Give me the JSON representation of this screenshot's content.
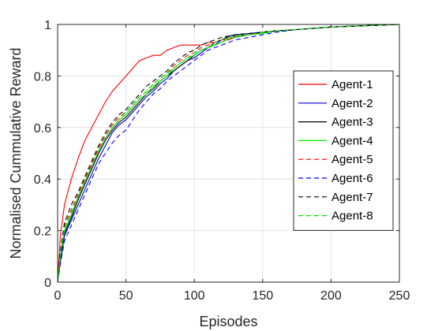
{
  "chart_data": {
    "type": "line",
    "title": "",
    "xlabel": "Episodes",
    "ylabel": "Normalised Cummulative Reward",
    "xlim": [
      0,
      250
    ],
    "ylim": [
      0,
      1
    ],
    "xticks": [
      0,
      50,
      100,
      150,
      200,
      250
    ],
    "xtick_labels": [
      "0",
      "50",
      "100",
      "150",
      "200",
      "250"
    ],
    "yticks": [
      0,
      0.2,
      0.4,
      0.6,
      0.8,
      1
    ],
    "ytick_labels": [
      "0",
      "0.2",
      "0.4",
      "0.6",
      "0.8",
      "1"
    ],
    "grid": true,
    "legend_position": "right",
    "x": [
      0,
      2,
      5,
      10,
      15,
      20,
      25,
      30,
      35,
      40,
      45,
      50,
      55,
      60,
      65,
      70,
      75,
      80,
      85,
      90,
      95,
      100,
      105,
      110,
      115,
      120,
      125,
      130,
      140,
      150,
      160,
      175,
      200,
      225,
      250
    ],
    "series": [
      {
        "name": "Agent-1",
        "color": "#ff0000",
        "dash": "solid",
        "values": [
          0,
          0.18,
          0.3,
          0.4,
          0.48,
          0.55,
          0.6,
          0.65,
          0.7,
          0.74,
          0.77,
          0.8,
          0.83,
          0.86,
          0.87,
          0.88,
          0.88,
          0.9,
          0.91,
          0.92,
          0.92,
          0.92,
          0.92,
          0.93,
          0.93,
          0.94,
          0.94,
          0.95,
          0.96,
          0.97,
          0.975,
          0.98,
          0.99,
          0.995,
          1.0
        ]
      },
      {
        "name": "Agent-2",
        "color": "#0000cc",
        "dash": "solid",
        "values": [
          0,
          0.08,
          0.18,
          0.24,
          0.3,
          0.36,
          0.42,
          0.48,
          0.53,
          0.58,
          0.61,
          0.63,
          0.66,
          0.69,
          0.72,
          0.74,
          0.77,
          0.79,
          0.82,
          0.84,
          0.86,
          0.87,
          0.89,
          0.91,
          0.92,
          0.94,
          0.955,
          0.96,
          0.965,
          0.97,
          0.975,
          0.98,
          0.99,
          0.995,
          1.0
        ]
      },
      {
        "name": "Agent-3",
        "color": "#000000",
        "dash": "solid",
        "values": [
          0,
          0.09,
          0.19,
          0.25,
          0.32,
          0.38,
          0.44,
          0.5,
          0.55,
          0.59,
          0.62,
          0.64,
          0.67,
          0.7,
          0.73,
          0.75,
          0.78,
          0.8,
          0.82,
          0.84,
          0.86,
          0.88,
          0.9,
          0.91,
          0.93,
          0.94,
          0.95,
          0.955,
          0.96,
          0.97,
          0.975,
          0.98,
          0.99,
          0.995,
          1.0
        ]
      },
      {
        "name": "Agent-4",
        "color": "#00e600",
        "dash": "solid",
        "values": [
          0,
          0.1,
          0.2,
          0.26,
          0.33,
          0.39,
          0.45,
          0.51,
          0.56,
          0.6,
          0.63,
          0.65,
          0.68,
          0.71,
          0.73,
          0.76,
          0.78,
          0.8,
          0.83,
          0.85,
          0.87,
          0.88,
          0.9,
          0.91,
          0.92,
          0.93,
          0.945,
          0.95,
          0.96,
          0.965,
          0.975,
          0.98,
          0.99,
          0.995,
          1.0
        ]
      },
      {
        "name": "Agent-5",
        "color": "#ff0000",
        "dash": "dashed",
        "values": [
          0,
          0.11,
          0.22,
          0.28,
          0.34,
          0.4,
          0.46,
          0.52,
          0.57,
          0.61,
          0.64,
          0.66,
          0.69,
          0.72,
          0.74,
          0.77,
          0.79,
          0.81,
          0.84,
          0.86,
          0.88,
          0.89,
          0.91,
          0.92,
          0.93,
          0.94,
          0.95,
          0.955,
          0.96,
          0.97,
          0.975,
          0.98,
          0.99,
          0.995,
          1.0
        ]
      },
      {
        "name": "Agent-6",
        "color": "#0000ff",
        "dash": "dashed",
        "values": [
          0,
          0.07,
          0.16,
          0.22,
          0.28,
          0.34,
          0.4,
          0.46,
          0.5,
          0.54,
          0.57,
          0.59,
          0.63,
          0.67,
          0.7,
          0.73,
          0.75,
          0.78,
          0.8,
          0.82,
          0.84,
          0.86,
          0.88,
          0.9,
          0.91,
          0.92,
          0.93,
          0.94,
          0.95,
          0.96,
          0.97,
          0.98,
          0.99,
          0.995,
          1.0
        ]
      },
      {
        "name": "Agent-7",
        "color": "#000000",
        "dash": "dashed",
        "values": [
          0,
          0.12,
          0.23,
          0.3,
          0.35,
          0.41,
          0.47,
          0.53,
          0.58,
          0.62,
          0.65,
          0.67,
          0.7,
          0.73,
          0.76,
          0.78,
          0.8,
          0.82,
          0.85,
          0.87,
          0.89,
          0.9,
          0.92,
          0.93,
          0.94,
          0.95,
          0.955,
          0.96,
          0.965,
          0.97,
          0.975,
          0.98,
          0.99,
          0.995,
          1.0
        ]
      },
      {
        "name": "Agent-8",
        "color": "#00e600",
        "dash": "dashed",
        "values": [
          0,
          0.1,
          0.21,
          0.27,
          0.33,
          0.39,
          0.45,
          0.51,
          0.56,
          0.6,
          0.63,
          0.66,
          0.69,
          0.72,
          0.74,
          0.77,
          0.79,
          0.81,
          0.83,
          0.85,
          0.87,
          0.89,
          0.9,
          0.91,
          0.93,
          0.94,
          0.95,
          0.955,
          0.96,
          0.97,
          0.975,
          0.98,
          0.99,
          0.995,
          1.0
        ]
      }
    ]
  }
}
